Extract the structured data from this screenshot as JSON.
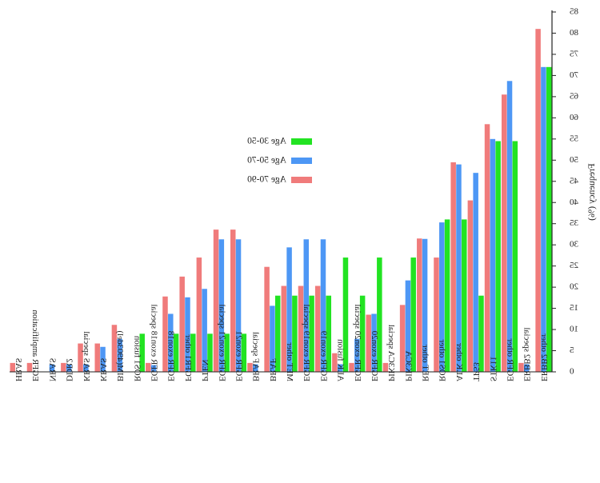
{
  "chart_data": {
    "type": "bar",
    "orientation": "vertical",
    "mirrored_horizontally": true,
    "ylabel": "Frequency (%)",
    "ylim": [
      0,
      85
    ],
    "yticks": [
      0,
      5,
      10,
      15,
      20,
      25,
      30,
      35,
      40,
      45,
      50,
      55,
      60,
      65,
      70,
      75,
      80,
      85
    ],
    "legend_position": "top-center",
    "categories": [
      "HRAS",
      "EGFR amplification",
      "NRAS",
      "DDR2",
      "KRAS special",
      "KRAS",
      "BIM(4903del)",
      "ROS1 fusion",
      "EGFR exon18 special",
      "EGFR exon18",
      "FGFR1 other",
      "PTEN",
      "EGFR exon21 special",
      "EGFR exon21",
      "BRAF special",
      "BRAF",
      "MET other",
      "EGFR exon19 special",
      "EGFR exon19",
      "ALK fusion",
      "EGFR exon20 special",
      "EGFR exon20",
      "PIK3CA special",
      "PIK3CA",
      "RET other",
      "ROS1 other",
      "ALK other",
      "TP53",
      "STK11",
      "EGFR other",
      "ERBB2 special",
      "ERBB2 other"
    ],
    "series": [
      {
        "name": "Age 30-50",
        "color": "#22e322",
        "values": [
          0,
          0,
          0,
          0,
          0,
          0,
          0,
          9,
          0,
          9,
          9,
          9,
          9,
          9,
          0,
          18,
          18,
          18,
          18,
          27,
          18,
          27,
          0,
          27,
          0,
          36,
          36,
          18,
          54.5,
          54.5,
          0,
          72
        ]
      },
      {
        "name": "Age 50-70",
        "color": "#4d97f5",
        "values": [
          0,
          0,
          1.8,
          1.8,
          1.8,
          5.9,
          7.8,
          0,
          1.6,
          13.7,
          17.6,
          19.6,
          31.3,
          31.3,
          1.8,
          15.6,
          29.4,
          31.3,
          31.3,
          1.8,
          7.8,
          13.7,
          0,
          21.6,
          31.4,
          35.3,
          49,
          47,
          55,
          68.7,
          1.8,
          72
        ]
      },
      {
        "name": "Age 70-90",
        "color": "#f07b7b",
        "values": [
          2.1,
          2.1,
          0,
          2.1,
          6.7,
          6.7,
          11.1,
          0,
          2.1,
          17.8,
          22.5,
          27,
          33.6,
          33.6,
          2.1,
          24.8,
          20.3,
          20.3,
          20.3,
          4.4,
          2.1,
          13.5,
          2.1,
          15.8,
          31.5,
          27,
          49.5,
          40.5,
          58.5,
          65.5,
          2.1,
          81
        ]
      }
    ]
  }
}
